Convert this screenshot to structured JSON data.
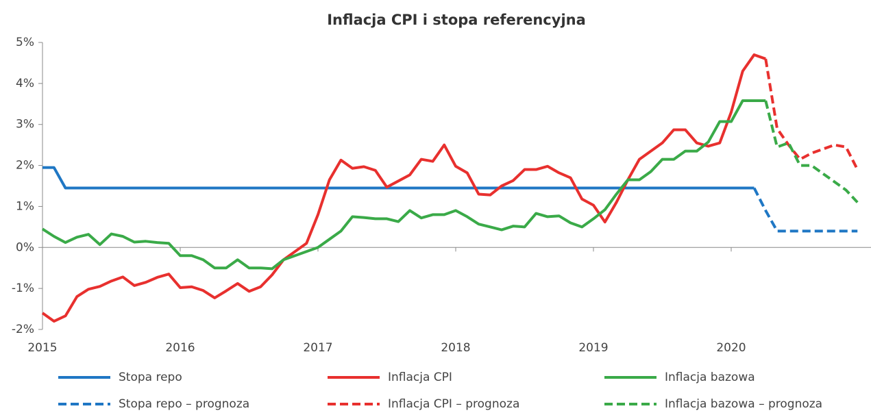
{
  "chart_data": {
    "type": "line",
    "title": "Inflacja CPI i stopa referencyjna",
    "categories": [
      "2015",
      null,
      null,
      null,
      null,
      null,
      null,
      null,
      null,
      null,
      null,
      null,
      "2016",
      null,
      null,
      null,
      null,
      null,
      null,
      null,
      null,
      null,
      null,
      null,
      "2017",
      null,
      null,
      null,
      null,
      null,
      null,
      null,
      null,
      null,
      null,
      null,
      "2018",
      null,
      null,
      null,
      null,
      null,
      null,
      null,
      null,
      null,
      null,
      null,
      "2019",
      null,
      null,
      null,
      null,
      null,
      null,
      null,
      null,
      null,
      null,
      null,
      "2020",
      null,
      null,
      null,
      null,
      null,
      null,
      null,
      null,
      null,
      null,
      null
    ],
    "ylim": [
      -2,
      5
    ],
    "yticks": [
      {
        "value": -2,
        "label": "-2%"
      },
      {
        "value": -1,
        "label": "-1%"
      },
      {
        "value": 0,
        "label": "0%"
      },
      {
        "value": 1,
        "label": "1%"
      },
      {
        "value": 2,
        "label": "2%"
      },
      {
        "value": 3,
        "label": "3%"
      },
      {
        "value": 4,
        "label": "4%"
      },
      {
        "value": 5,
        "label": "5%"
      }
    ],
    "series": [
      {
        "name": "Stopa repo",
        "color": "#1f77c4",
        "dashed": false,
        "values": [
          1.95,
          1.95,
          1.45,
          1.45,
          1.45,
          1.45,
          1.45,
          1.45,
          1.45,
          1.45,
          1.45,
          1.45,
          1.45,
          1.45,
          1.45,
          1.45,
          1.45,
          1.45,
          1.45,
          1.45,
          1.45,
          1.45,
          1.45,
          1.45,
          1.45,
          1.45,
          1.45,
          1.45,
          1.45,
          1.45,
          1.45,
          1.45,
          1.45,
          1.45,
          1.45,
          1.45,
          1.45,
          1.45,
          1.45,
          1.45,
          1.45,
          1.45,
          1.45,
          1.45,
          1.45,
          1.45,
          1.45,
          1.45,
          1.45,
          1.45,
          1.45,
          1.45,
          1.45,
          1.45,
          1.45,
          1.45,
          1.45,
          1.45,
          1.45,
          1.45,
          1.45,
          1.45,
          1.45,
          null,
          null,
          null,
          null,
          null,
          null,
          null,
          null,
          null
        ]
      },
      {
        "name": "Inflacja CPI",
        "color": "#e8302e",
        "dashed": false,
        "values": [
          -1.6,
          -1.8,
          -1.67,
          -1.2,
          -1.02,
          -0.95,
          -0.82,
          -0.72,
          -0.93,
          -0.85,
          -0.73,
          -0.65,
          -0.98,
          -0.96,
          -1.05,
          -1.23,
          -1.06,
          -0.88,
          -1.07,
          -0.96,
          -0.67,
          -0.3,
          -0.1,
          0.1,
          0.8,
          1.65,
          2.13,
          1.93,
          1.97,
          1.88,
          1.47,
          1.62,
          1.77,
          2.15,
          2.1,
          2.5,
          1.98,
          1.82,
          1.3,
          1.28,
          1.5,
          1.63,
          1.9,
          1.9,
          1.98,
          1.82,
          1.7,
          1.18,
          1.03,
          0.62,
          1.1,
          1.65,
          2.15,
          2.35,
          2.55,
          2.87,
          2.87,
          2.55,
          2.47,
          2.55,
          3.3,
          4.3,
          4.7,
          4.6,
          null,
          null,
          null,
          null,
          null,
          null,
          null,
          null
        ]
      },
      {
        "name": "Inflacja bazowa",
        "color": "#3aaa48",
        "dashed": false,
        "values": [
          0.45,
          0.27,
          0.12,
          0.25,
          0.32,
          0.07,
          0.33,
          0.27,
          0.13,
          0.15,
          0.12,
          0.1,
          -0.2,
          -0.2,
          -0.3,
          -0.5,
          -0.5,
          -0.3,
          -0.5,
          -0.5,
          -0.52,
          -0.3,
          -0.2,
          -0.1,
          0.0,
          0.2,
          0.4,
          0.75,
          0.73,
          0.7,
          0.7,
          0.63,
          0.9,
          0.72,
          0.8,
          0.8,
          0.9,
          0.75,
          0.57,
          0.5,
          0.43,
          0.52,
          0.5,
          0.83,
          0.75,
          0.77,
          0.6,
          0.5,
          0.7,
          0.92,
          1.3,
          1.65,
          1.65,
          1.85,
          2.15,
          2.15,
          2.35,
          2.35,
          2.57,
          3.07,
          3.07,
          3.58,
          3.58,
          3.58,
          null,
          null,
          null,
          null,
          null,
          null,
          null,
          null
        ]
      },
      {
        "name": "Stopa repo – prognoza",
        "color": "#1f77c4",
        "dashed": true,
        "values": [
          null,
          null,
          null,
          null,
          null,
          null,
          null,
          null,
          null,
          null,
          null,
          null,
          null,
          null,
          null,
          null,
          null,
          null,
          null,
          null,
          null,
          null,
          null,
          null,
          null,
          null,
          null,
          null,
          null,
          null,
          null,
          null,
          null,
          null,
          null,
          null,
          null,
          null,
          null,
          null,
          null,
          null,
          null,
          null,
          null,
          null,
          null,
          null,
          null,
          null,
          null,
          null,
          null,
          null,
          null,
          null,
          null,
          null,
          null,
          null,
          null,
          null,
          1.45,
          0.9,
          0.4,
          0.4,
          0.4,
          0.4,
          0.4,
          0.4,
          0.4,
          0.4
        ]
      },
      {
        "name": "Inflacja CPI – prognoza",
        "color": "#e8302e",
        "dashed": true,
        "values": [
          null,
          null,
          null,
          null,
          null,
          null,
          null,
          null,
          null,
          null,
          null,
          null,
          null,
          null,
          null,
          null,
          null,
          null,
          null,
          null,
          null,
          null,
          null,
          null,
          null,
          null,
          null,
          null,
          null,
          null,
          null,
          null,
          null,
          null,
          null,
          null,
          null,
          null,
          null,
          null,
          null,
          null,
          null,
          null,
          null,
          null,
          null,
          null,
          null,
          null,
          null,
          null,
          null,
          null,
          null,
          null,
          null,
          null,
          null,
          null,
          null,
          null,
          null,
          4.6,
          2.9,
          2.5,
          2.15,
          2.3,
          2.4,
          2.5,
          2.45,
          1.9
        ]
      },
      {
        "name": "Inflacja bazowa – prognoza",
        "color": "#3aaa48",
        "dashed": true,
        "values": [
          null,
          null,
          null,
          null,
          null,
          null,
          null,
          null,
          null,
          null,
          null,
          null,
          null,
          null,
          null,
          null,
          null,
          null,
          null,
          null,
          null,
          null,
          null,
          null,
          null,
          null,
          null,
          null,
          null,
          null,
          null,
          null,
          null,
          null,
          null,
          null,
          null,
          null,
          null,
          null,
          null,
          null,
          null,
          null,
          null,
          null,
          null,
          null,
          null,
          null,
          null,
          null,
          null,
          null,
          null,
          null,
          null,
          null,
          null,
          null,
          null,
          null,
          null,
          3.58,
          2.45,
          2.55,
          2.0,
          2.0,
          1.8,
          1.6,
          1.4,
          1.1
        ]
      }
    ]
  }
}
